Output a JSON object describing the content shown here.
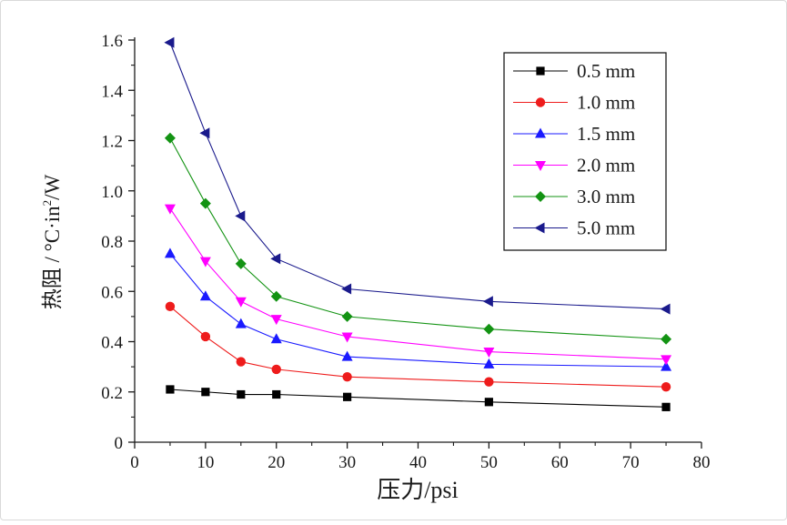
{
  "chart_data": {
    "type": "line",
    "title": "",
    "xlabel": "压力/psi",
    "ylabel": "热阻 / °C·in²/W",
    "ylabel_parts": {
      "main": "热阻 / °C·in",
      "sup": "2",
      "tail": "/W"
    },
    "xlim": [
      0,
      80
    ],
    "ylim": [
      0,
      1.6
    ],
    "xticks": [
      "0",
      "10",
      "20",
      "30",
      "40",
      "50",
      "60",
      "70",
      "80"
    ],
    "yticks": [
      "0",
      "0.2",
      "0.4",
      "0.6",
      "0.8",
      "1.0",
      "1.2",
      "1.4",
      "1.6"
    ],
    "x": [
      5,
      10,
      15,
      20,
      30,
      50,
      75
    ],
    "grid": false,
    "legend_position": "top-right",
    "series": [
      {
        "name": "0.5 mm",
        "color": "#000000",
        "marker": "square",
        "values": [
          0.21,
          0.2,
          0.19,
          0.19,
          0.18,
          0.16,
          0.14
        ]
      },
      {
        "name": "1.0 mm",
        "color": "#ee1c1c",
        "marker": "circle",
        "values": [
          0.54,
          0.42,
          0.32,
          0.29,
          0.26,
          0.24,
          0.22
        ]
      },
      {
        "name": "1.5 mm",
        "color": "#1a1aff",
        "marker": "triangle-up",
        "values": [
          0.75,
          0.58,
          0.47,
          0.41,
          0.34,
          0.31,
          0.3
        ]
      },
      {
        "name": "2.0 mm",
        "color": "#ff00ff",
        "marker": "triangle-down",
        "values": [
          0.93,
          0.72,
          0.56,
          0.49,
          0.42,
          0.36,
          0.33
        ]
      },
      {
        "name": "3.0 mm",
        "color": "#139313",
        "marker": "diamond",
        "values": [
          1.21,
          0.95,
          0.71,
          0.58,
          0.5,
          0.45,
          0.41
        ]
      },
      {
        "name": "5.0 mm",
        "color": "#1a1a8c",
        "marker": "triangle-left",
        "values": [
          1.59,
          1.23,
          0.9,
          0.73,
          0.61,
          0.56,
          0.53
        ]
      }
    ]
  }
}
